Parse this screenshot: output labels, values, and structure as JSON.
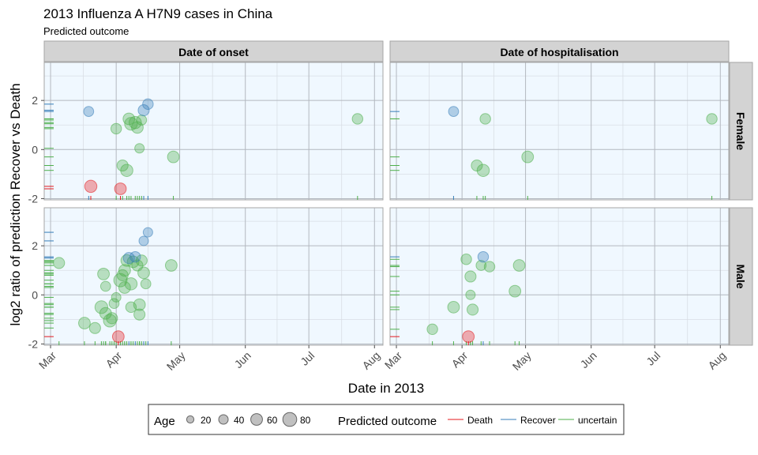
{
  "chart_data": {
    "type": "scatter",
    "title": "2013 Influenza A H7N9 cases in China",
    "subtitle": "Predicted outcome",
    "xlabel": "Date in 2013",
    "ylabel": "log2 ratio of prediction Recover vs Death",
    "x_ticks": [
      "Mar",
      "Apr",
      "May",
      "Jun",
      "Jul",
      "Aug"
    ],
    "y_ticks": [
      "-2",
      "0",
      "2"
    ],
    "ylim": [
      -2.05,
      3.55
    ],
    "xlim": [
      "2013-02-26",
      "2013-08-05"
    ],
    "grid": true,
    "column_facets": [
      "Date of onset",
      "Date of hospitalisation"
    ],
    "row_facets": [
      "Female",
      "Male"
    ],
    "colors": {
      "Death": "#e41a1c",
      "Recover": "#377eb8",
      "uncertain": "#4daf4a"
    },
    "legend": {
      "position": "bottom",
      "age_title": "Age",
      "age_values": [
        "20",
        "40",
        "60",
        "80"
      ],
      "outcome_title": "Predicted outcome",
      "outcomes": [
        "Death",
        "Recover",
        "uncertain"
      ]
    },
    "panels": [
      {
        "col": 0,
        "row": 0,
        "points": [
          {
            "date": "2013-03-19",
            "y": 1.55,
            "age": 45,
            "outcome": "Recover"
          },
          {
            "date": "2013-03-20",
            "y": -1.5,
            "age": 65,
            "outcome": "Death"
          },
          {
            "date": "2013-04-03",
            "y": -1.6,
            "age": 60,
            "outcome": "Death"
          },
          {
            "date": "2013-04-01",
            "y": 0.85,
            "age": 50,
            "outcome": "uncertain"
          },
          {
            "date": "2013-04-04",
            "y": -0.65,
            "age": 55,
            "outcome": "uncertain"
          },
          {
            "date": "2013-04-06",
            "y": -0.85,
            "age": 65,
            "outcome": "uncertain"
          },
          {
            "date": "2013-04-07",
            "y": 1.25,
            "age": 60,
            "outcome": "uncertain"
          },
          {
            "date": "2013-04-08",
            "y": 1.05,
            "age": 70,
            "outcome": "uncertain"
          },
          {
            "date": "2013-04-10",
            "y": 1.1,
            "age": 65,
            "outcome": "uncertain"
          },
          {
            "date": "2013-04-11",
            "y": 0.9,
            "age": 60,
            "outcome": "uncertain"
          },
          {
            "date": "2013-04-12",
            "y": 0.05,
            "age": 40,
            "outcome": "uncertain"
          },
          {
            "date": "2013-04-13",
            "y": 1.2,
            "age": 45,
            "outcome": "uncertain"
          },
          {
            "date": "2013-04-14",
            "y": 1.6,
            "age": 55,
            "outcome": "Recover"
          },
          {
            "date": "2013-04-16",
            "y": 1.85,
            "age": 50,
            "outcome": "Recover"
          },
          {
            "date": "2013-04-28",
            "y": -0.3,
            "age": 60,
            "outcome": "uncertain"
          },
          {
            "date": "2013-07-24",
            "y": 1.25,
            "age": 50,
            "outcome": "uncertain"
          }
        ]
      },
      {
        "col": 1,
        "row": 0,
        "points": [
          {
            "date": "2013-03-28",
            "y": 1.55,
            "age": 45,
            "outcome": "Recover"
          },
          {
            "date": "2013-04-08",
            "y": -0.65,
            "age": 55,
            "outcome": "uncertain"
          },
          {
            "date": "2013-04-11",
            "y": -0.85,
            "age": 65,
            "outcome": "uncertain"
          },
          {
            "date": "2013-04-12",
            "y": 1.25,
            "age": 50,
            "outcome": "uncertain"
          },
          {
            "date": "2013-05-02",
            "y": -0.3,
            "age": 60,
            "outcome": "uncertain"
          },
          {
            "date": "2013-07-28",
            "y": 1.25,
            "age": 50,
            "outcome": "uncertain"
          }
        ]
      },
      {
        "col": 0,
        "row": 1,
        "points": [
          {
            "date": "2013-03-05",
            "y": 1.3,
            "age": 55,
            "outcome": "uncertain"
          },
          {
            "date": "2013-03-17",
            "y": -1.15,
            "age": 60,
            "outcome": "uncertain"
          },
          {
            "date": "2013-03-22",
            "y": -1.35,
            "age": 55,
            "outcome": "uncertain"
          },
          {
            "date": "2013-03-26",
            "y": 0.85,
            "age": 60,
            "outcome": "uncertain"
          },
          {
            "date": "2013-03-27",
            "y": 0.35,
            "age": 45,
            "outcome": "uncertain"
          },
          {
            "date": "2013-03-25",
            "y": -0.5,
            "age": 70,
            "outcome": "uncertain"
          },
          {
            "date": "2013-03-27",
            "y": -0.75,
            "age": 60,
            "outcome": "uncertain"
          },
          {
            "date": "2013-03-29",
            "y": -1.05,
            "age": 70,
            "outcome": "uncertain"
          },
          {
            "date": "2013-03-30",
            "y": -0.95,
            "age": 55,
            "outcome": "uncertain"
          },
          {
            "date": "2013-03-31",
            "y": -0.35,
            "age": 45,
            "outcome": "uncertain"
          },
          {
            "date": "2013-04-01",
            "y": -0.1,
            "age": 40,
            "outcome": "uncertain"
          },
          {
            "date": "2013-04-02",
            "y": -1.7,
            "age": 60,
            "outcome": "Death"
          },
          {
            "date": "2013-04-03",
            "y": 0.6,
            "age": 75,
            "outcome": "uncertain"
          },
          {
            "date": "2013-04-04",
            "y": 0.8,
            "age": 55,
            "outcome": "uncertain"
          },
          {
            "date": "2013-04-05",
            "y": 1.0,
            "age": 60,
            "outcome": "uncertain"
          },
          {
            "date": "2013-04-05",
            "y": 0.3,
            "age": 60,
            "outcome": "uncertain"
          },
          {
            "date": "2013-04-06",
            "y": 1.4,
            "age": 60,
            "outcome": "uncertain"
          },
          {
            "date": "2013-04-07",
            "y": 1.5,
            "age": 55,
            "outcome": "Recover"
          },
          {
            "date": "2013-04-08",
            "y": 0.45,
            "age": 65,
            "outcome": "uncertain"
          },
          {
            "date": "2013-04-08",
            "y": -0.5,
            "age": 50,
            "outcome": "uncertain"
          },
          {
            "date": "2013-04-09",
            "y": 1.35,
            "age": 60,
            "outcome": "uncertain"
          },
          {
            "date": "2013-04-10",
            "y": 1.55,
            "age": 50,
            "outcome": "Recover"
          },
          {
            "date": "2013-04-11",
            "y": 1.2,
            "age": 55,
            "outcome": "uncertain"
          },
          {
            "date": "2013-04-12",
            "y": -0.4,
            "age": 60,
            "outcome": "uncertain"
          },
          {
            "date": "2013-04-12",
            "y": -0.8,
            "age": 55,
            "outcome": "uncertain"
          },
          {
            "date": "2013-04-13",
            "y": 1.4,
            "age": 55,
            "outcome": "uncertain"
          },
          {
            "date": "2013-04-14",
            "y": 0.9,
            "age": 60,
            "outcome": "uncertain"
          },
          {
            "date": "2013-04-15",
            "y": 0.45,
            "age": 45,
            "outcome": "uncertain"
          },
          {
            "date": "2013-04-14",
            "y": 2.2,
            "age": 40,
            "outcome": "Recover"
          },
          {
            "date": "2013-04-16",
            "y": 2.55,
            "age": 40,
            "outcome": "Recover"
          },
          {
            "date": "2013-04-27",
            "y": 1.2,
            "age": 60,
            "outcome": "uncertain"
          }
        ]
      },
      {
        "col": 1,
        "row": 1,
        "points": [
          {
            "date": "2013-03-18",
            "y": -1.4,
            "age": 50,
            "outcome": "uncertain"
          },
          {
            "date": "2013-03-28",
            "y": -0.5,
            "age": 60,
            "outcome": "uncertain"
          },
          {
            "date": "2013-04-03",
            "y": 1.45,
            "age": 50,
            "outcome": "uncertain"
          },
          {
            "date": "2013-04-04",
            "y": -1.7,
            "age": 60,
            "outcome": "Death"
          },
          {
            "date": "2013-04-05",
            "y": 0.0,
            "age": 40,
            "outcome": "uncertain"
          },
          {
            "date": "2013-04-05",
            "y": 0.75,
            "age": 55,
            "outcome": "uncertain"
          },
          {
            "date": "2013-04-06",
            "y": -0.6,
            "age": 55,
            "outcome": "uncertain"
          },
          {
            "date": "2013-04-10",
            "y": 1.2,
            "age": 45,
            "outcome": "uncertain"
          },
          {
            "date": "2013-04-11",
            "y": 1.55,
            "age": 50,
            "outcome": "Recover"
          },
          {
            "date": "2013-04-14",
            "y": 1.15,
            "age": 50,
            "outcome": "uncertain"
          },
          {
            "date": "2013-04-26",
            "y": 0.15,
            "age": 60,
            "outcome": "uncertain"
          },
          {
            "date": "2013-04-28",
            "y": 1.2,
            "age": 60,
            "outcome": "uncertain"
          }
        ]
      }
    ]
  }
}
